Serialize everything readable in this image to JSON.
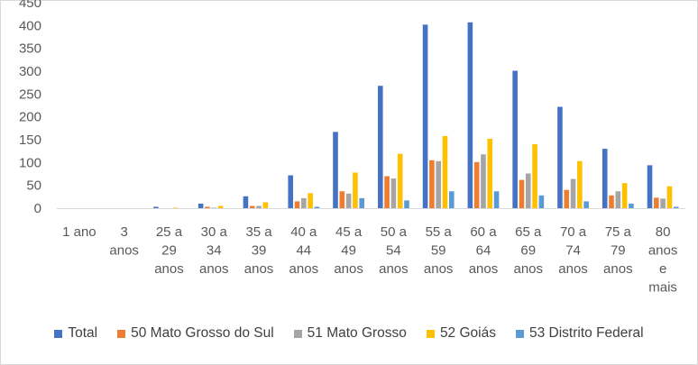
{
  "chart_data": {
    "type": "bar",
    "categories": [
      "1 ano",
      "3 anos",
      "25 a 29 anos",
      "30 a 34 anos",
      "35 a 39 anos",
      "40 a 44 anos",
      "45 a 49 anos",
      "50 a 54 anos",
      "55 a 59 anos",
      "60 a 64 anos",
      "65 a 69 anos",
      "70 a 74 anos",
      "75 a 79 anos",
      "80 anos e mais"
    ],
    "category_lines": [
      [
        "1 ano"
      ],
      [
        "3",
        "anos"
      ],
      [
        "25 a",
        "29",
        "anos"
      ],
      [
        "30 a",
        "34",
        "anos"
      ],
      [
        "35 a",
        "39",
        "anos"
      ],
      [
        "40 a",
        "44",
        "anos"
      ],
      [
        "45 a",
        "49",
        "anos"
      ],
      [
        "50 a",
        "54",
        "anos"
      ],
      [
        "55 a",
        "59",
        "anos"
      ],
      [
        "60 a",
        "64",
        "anos"
      ],
      [
        "65 a",
        "69",
        "anos"
      ],
      [
        "70 a",
        "74",
        "anos"
      ],
      [
        "75 a",
        "79",
        "anos"
      ],
      [
        "80",
        "anos",
        "e",
        "mais"
      ]
    ],
    "series": [
      {
        "name": "Total",
        "color": "#4472C4",
        "values": [
          0,
          0,
          3,
          10,
          26,
          72,
          167,
          268,
          402,
          407,
          301,
          222,
          130,
          94
        ]
      },
      {
        "name": "50 Mato Grosso do Sul",
        "color": "#ED7D31",
        "values": [
          0,
          0,
          0,
          3,
          5,
          15,
          37,
          70,
          105,
          101,
          62,
          40,
          28,
          23
        ]
      },
      {
        "name": "51 Mato Grosso",
        "color": "#A5A5A5",
        "values": [
          0,
          0,
          0,
          1,
          5,
          22,
          32,
          65,
          103,
          118,
          76,
          64,
          37,
          21
        ]
      },
      {
        "name": "52 Goiás",
        "color": "#FFC000",
        "values": [
          0,
          0,
          1,
          5,
          13,
          33,
          78,
          119,
          158,
          152,
          140,
          103,
          55,
          48
        ]
      },
      {
        "name": "53 Distrito Federal",
        "color": "#5B9BD5",
        "values": [
          0,
          0,
          0,
          0,
          0,
          3,
          22,
          17,
          37,
          37,
          28,
          15,
          10,
          3
        ]
      }
    ],
    "ylim": [
      0,
      450
    ],
    "yticks": [
      0,
      50,
      100,
      150,
      200,
      250,
      300,
      350,
      400,
      450
    ],
    "legend_position": "bottom",
    "grid": false
  }
}
